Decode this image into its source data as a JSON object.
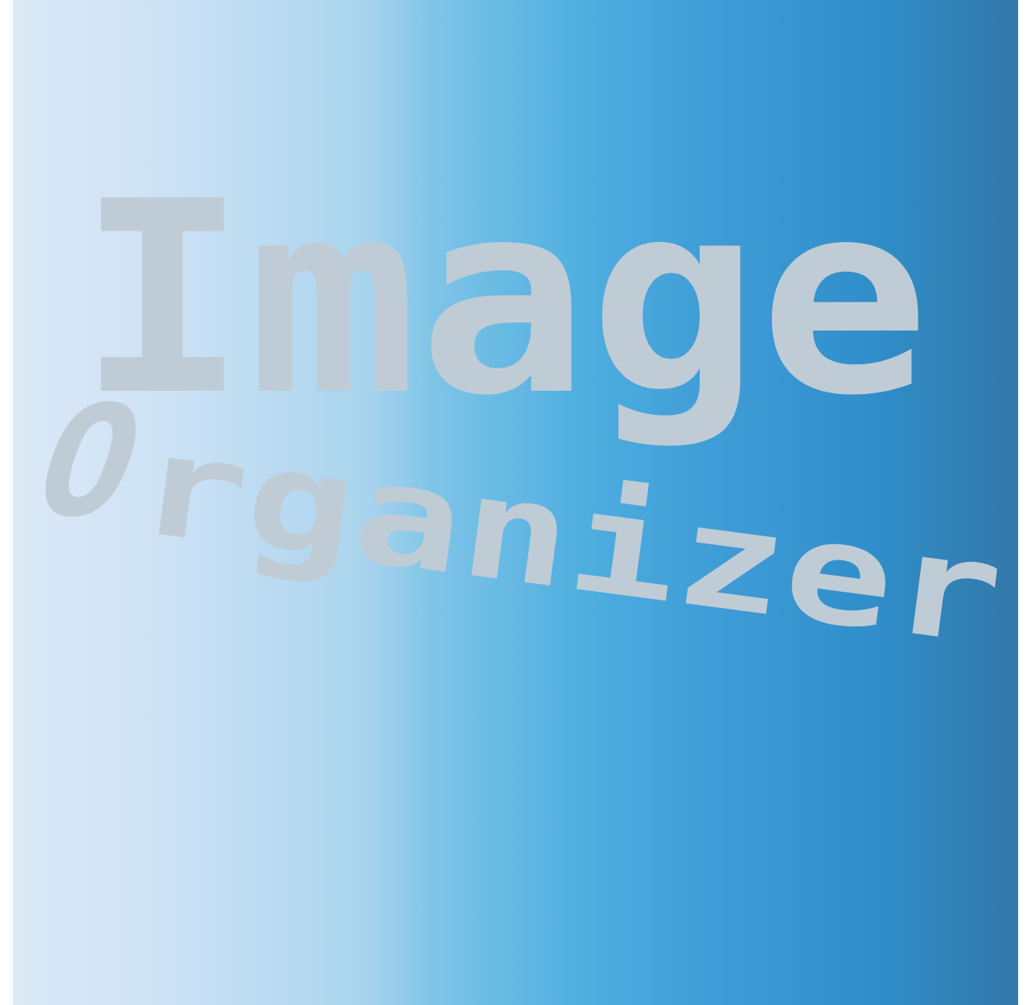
{
  "logo": {
    "line1": "Image",
    "line2_initial": "O",
    "line2_rest": "rganizer",
    "text_color": "#bfccd6"
  },
  "background": {
    "gradient_start": "#dce9f6",
    "gradient_end": "#3278a8"
  }
}
